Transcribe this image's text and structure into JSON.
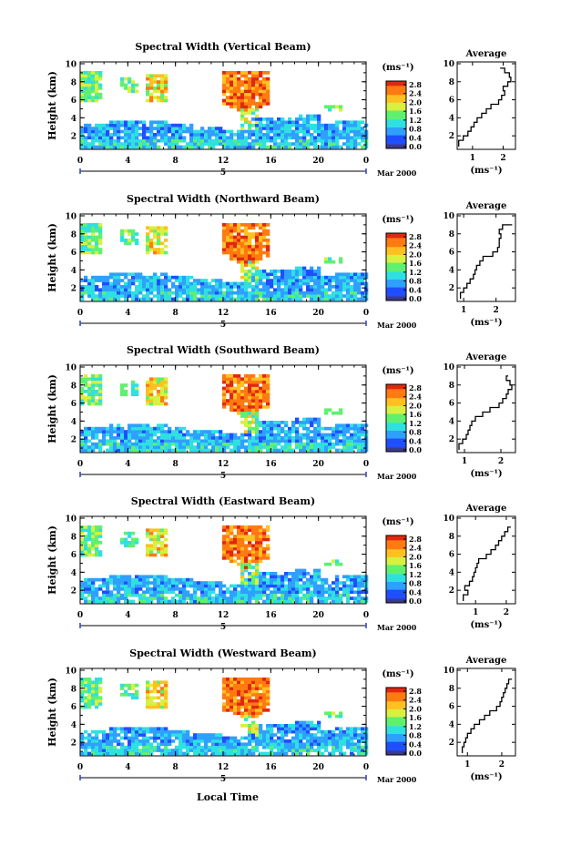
{
  "figure": {
    "width": 616,
    "height": 929,
    "bottom_xlabel": "Local Time",
    "date_label": "Mar 2000",
    "day_label": "5",
    "colorbar_unit": "(ms⁻¹)",
    "colorbar_ticks": [
      "0.0",
      "0.4",
      "0.8",
      "1.2",
      "1.6",
      "2.0",
      "2.4",
      "2.8"
    ],
    "colorbar_colors": [
      "#3a3a8c",
      "#1f4fff",
      "#2fa0ff",
      "#2fe0e0",
      "#60f070",
      "#d8f040",
      "#ffc020",
      "#ff7a10",
      "#e02810"
    ],
    "avg_title": "Average",
    "avg_xlabel": "(ms⁻¹)"
  },
  "chart_data": [
    {
      "type": "heatmap",
      "title": "Spectral Width (Vertical Beam)",
      "ylabel": "Height (km)",
      "x_ticks": [
        "0",
        "4",
        "8",
        "12",
        "16",
        "20",
        "0"
      ],
      "y_ticks": [
        "2",
        "4",
        "6",
        "8",
        "10"
      ],
      "xlim": [
        0,
        24
      ],
      "ylim": [
        0.5,
        10.2
      ],
      "clim": [
        0.0,
        2.8
      ],
      "average_profile": {
        "title": "Average",
        "xlabel": "(ms⁻¹)",
        "x_ticks": [
          "1",
          "2"
        ],
        "xlim": [
          0.5,
          2.4
        ],
        "heights": [
          0.8,
          1.5,
          2,
          2.5,
          3,
          3.5,
          4,
          4.5,
          5,
          5.5,
          6,
          6.5,
          7,
          7.5,
          8,
          8.5,
          9,
          9.5
        ],
        "values": [
          0.55,
          0.7,
          0.85,
          0.95,
          1.05,
          1.15,
          1.3,
          1.45,
          1.6,
          1.85,
          1.95,
          2.05,
          2.0,
          2.15,
          2.25,
          2.2,
          2.05,
          1.9
        ]
      }
    },
    {
      "type": "heatmap",
      "title": "Spectral Width (Northward Beam)",
      "ylabel": "Height (km)",
      "x_ticks": [
        "0",
        "4",
        "8",
        "12",
        "16",
        "20",
        "0"
      ],
      "y_ticks": [
        "2",
        "4",
        "6",
        "8",
        "10"
      ],
      "xlim": [
        0,
        24
      ],
      "ylim": [
        0.5,
        10.2
      ],
      "clim": [
        0.0,
        2.8
      ],
      "average_profile": {
        "title": "Average",
        "xlabel": "(ms⁻¹)",
        "x_ticks": [
          "1",
          "2"
        ],
        "xlim": [
          0.8,
          2.6
        ],
        "heights": [
          0.8,
          1.5,
          2,
          2.5,
          3,
          3.5,
          4,
          4.5,
          5,
          5.5,
          6,
          6.5,
          7,
          7.5,
          8,
          8.5,
          9
        ],
        "values": [
          0.9,
          1.0,
          1.1,
          1.2,
          1.3,
          1.35,
          1.4,
          1.5,
          1.6,
          1.9,
          2.05,
          2.1,
          2.1,
          2.15,
          2.1,
          2.2,
          2.5
        ]
      }
    },
    {
      "type": "heatmap",
      "title": "Spectral Width (Southward Beam)",
      "ylabel": "Height (km)",
      "x_ticks": [
        "0",
        "4",
        "8",
        "12",
        "16",
        "20",
        "0"
      ],
      "y_ticks": [
        "2",
        "4",
        "6",
        "8",
        "10"
      ],
      "xlim": [
        0,
        24
      ],
      "ylim": [
        0.5,
        10.2
      ],
      "clim": [
        0.0,
        2.8
      ],
      "average_profile": {
        "title": "Average",
        "xlabel": "(ms⁻¹)",
        "x_ticks": [
          "1",
          "2"
        ],
        "xlim": [
          0.8,
          2.4
        ],
        "heights": [
          0.8,
          1.5,
          2,
          2.5,
          3,
          3.5,
          4,
          4.5,
          5,
          5.5,
          6,
          6.5,
          7,
          7.5,
          8,
          8.5,
          9
        ],
        "values": [
          0.85,
          0.95,
          1.05,
          1.1,
          1.15,
          1.2,
          1.3,
          1.5,
          1.7,
          1.95,
          2.05,
          2.15,
          2.2,
          2.3,
          2.25,
          2.15,
          2.2
        ]
      }
    },
    {
      "type": "heatmap",
      "title": "Spectral Width (Eastward Beam)",
      "ylabel": "Height (km)",
      "x_ticks": [
        "0",
        "4",
        "8",
        "12",
        "16",
        "20",
        "0"
      ],
      "y_ticks": [
        "2",
        "4",
        "6",
        "8",
        "10"
      ],
      "xlim": [
        0,
        24
      ],
      "ylim": [
        0.5,
        10.2
      ],
      "clim": [
        0.0,
        2.8
      ],
      "average_profile": {
        "title": "Average",
        "xlabel": "(ms⁻¹)",
        "x_ticks": [
          "1",
          "2"
        ],
        "xlim": [
          0.4,
          2.3
        ],
        "heights": [
          0.8,
          1.5,
          2,
          2.5,
          3,
          3.5,
          4,
          4.5,
          5,
          5.5,
          6,
          6.5,
          7,
          7.5,
          8,
          8.5,
          9
        ],
        "values": [
          0.6,
          0.75,
          0.65,
          0.8,
          0.9,
          0.95,
          1.0,
          1.05,
          1.1,
          1.35,
          1.5,
          1.65,
          1.75,
          1.85,
          1.95,
          2.05,
          2.15
        ]
      }
    },
    {
      "type": "heatmap",
      "title": "Spectral Width (Westward Beam)",
      "ylabel": "Height (km)",
      "x_ticks": [
        "0",
        "4",
        "8",
        "12",
        "16",
        "20",
        "0"
      ],
      "y_ticks": [
        "2",
        "4",
        "6",
        "8",
        "10"
      ],
      "xlim": [
        0,
        24
      ],
      "ylim": [
        0.5,
        10.2
      ],
      "clim": [
        0.0,
        2.8
      ],
      "average_profile": {
        "title": "Average",
        "xlabel": "(ms⁻¹)",
        "x_ticks": [
          "1",
          "2"
        ],
        "xlim": [
          0.7,
          2.4
        ],
        "heights": [
          0.8,
          1.5,
          2,
          2.5,
          3,
          3.5,
          4,
          4.5,
          5,
          5.5,
          6,
          6.5,
          7,
          7.5,
          8,
          8.5,
          9
        ],
        "values": [
          0.85,
          0.9,
          0.95,
          1.0,
          1.1,
          1.2,
          1.35,
          1.5,
          1.65,
          1.85,
          1.95,
          2.0,
          2.05,
          2.1,
          2.15,
          2.2,
          2.3
        ]
      }
    }
  ]
}
